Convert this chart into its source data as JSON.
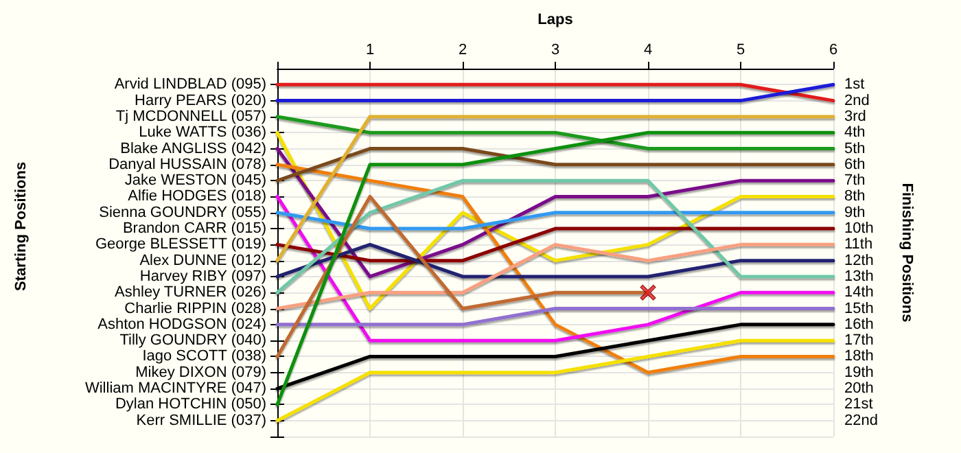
{
  "chart_data": {
    "type": "line",
    "xlabel": "Laps",
    "ylabel": "Finishing Positions",
    "annotations": [
      "Starting Positions"
    ],
    "x": [
      0,
      1,
      2,
      3,
      4,
      5,
      6
    ],
    "xlim": [
      0,
      6
    ],
    "xticks": [
      {
        "value": 0,
        "label": null
      },
      1,
      2,
      3,
      4,
      5,
      6
    ],
    "y_categories": [
      "Arvid LINDBLAD (095)",
      "Harry PEARS (020)",
      "Tj MCDONNELL (057)",
      "Luke WATTS (036)",
      "Blake ANGLISS (042)",
      "Danyal HUSSAIN (078)",
      "Jake WESTON (045)",
      "Alfie HODGES (018)",
      "Sienna GOUNDRY (055)",
      "Brandon CARR (015)",
      "George BLESSETT (019)",
      "Alex DUNNE (012)",
      "Harvey RIBY (097)",
      "Ashley TURNER (026)",
      "Charlie RIPPIN (028)",
      "Ashton HODGSON (024)",
      "Tilly GOUNDRY (040)",
      "Iago SCOTT (038)",
      "Mikey DIXON (079)",
      "William MACINTYRE (047)",
      "Dylan HOTCHIN (050)",
      "Kerr SMILLIE (037)"
    ],
    "ylim": [
      23,
      0
    ],
    "yticks": [
      {
        "value": 1,
        "label": "1st"
      },
      {
        "value": 2,
        "label": "2nd"
      },
      {
        "value": 3,
        "label": "3rd"
      },
      {
        "value": 4,
        "label": "4th"
      },
      {
        "value": 5,
        "label": "5th"
      },
      {
        "value": 6,
        "label": "6th"
      },
      {
        "value": 7,
        "label": "7th"
      },
      {
        "value": 8,
        "label": "8th"
      },
      {
        "value": 9,
        "label": "9th"
      },
      {
        "value": 10,
        "label": "10th"
      },
      {
        "value": 11,
        "label": "11th"
      },
      {
        "value": 12,
        "label": "12th"
      },
      {
        "value": 13,
        "label": "13th"
      },
      {
        "value": 14,
        "label": "14th"
      },
      {
        "value": 15,
        "label": "15th"
      },
      {
        "value": 16,
        "label": "16th"
      },
      {
        "value": 17,
        "label": "17th"
      },
      {
        "value": 18,
        "label": "18th"
      },
      {
        "value": 19,
        "label": "19th"
      },
      {
        "value": 20,
        "label": "20th"
      },
      {
        "value": 21,
        "label": "21st"
      },
      {
        "value": 22,
        "label": "22nd"
      },
      {
        "value": 23,
        "label": null
      }
    ],
    "grid": true,
    "marker": "none",
    "line_style": "solid",
    "series": [
      {
        "color": "#e01b1b",
        "values": [
          1,
          1,
          1,
          1,
          1,
          1,
          2
        ]
      },
      {
        "color": "#1a1ad8",
        "values": [
          2,
          2,
          2,
          2,
          2,
          2,
          1
        ]
      },
      {
        "color": "#1a9a1a",
        "values": [
          3,
          4,
          4,
          4,
          5,
          5,
          5
        ]
      },
      {
        "color": "#f5e000",
        "values": [
          4,
          15,
          9,
          12,
          11,
          8,
          8
        ]
      },
      {
        "color": "#7a0a8a",
        "values": [
          5,
          13,
          11,
          8,
          8,
          7,
          7
        ]
      },
      {
        "color": "#f07f10",
        "values": [
          6,
          7,
          8,
          16,
          19,
          18,
          18
        ]
      },
      {
        "color": "#7a4a1a",
        "values": [
          7,
          5,
          5,
          6,
          6,
          6,
          6
        ]
      },
      {
        "color": "#f010f0",
        "values": [
          8,
          17,
          17,
          17,
          16,
          14,
          14
        ]
      },
      {
        "color": "#3399f0",
        "values": [
          9,
          10,
          10,
          9,
          9,
          9,
          9
        ]
      },
      {
        "color": "#8b0000",
        "values": [
          11,
          12,
          12,
          10,
          10,
          10,
          10
        ]
      },
      {
        "color": "#e0b030",
        "values": [
          12,
          3,
          3,
          3,
          3,
          3,
          3
        ]
      },
      {
        "color": "#202070",
        "values": [
          13,
          11,
          13,
          13,
          13,
          12,
          12
        ]
      },
      {
        "color": "#70c8a8",
        "values": [
          14,
          9,
          7,
          7,
          7,
          13,
          13
        ]
      },
      {
        "color": "#f8a080",
        "values": [
          15,
          14,
          14,
          11,
          12,
          11,
          11
        ]
      },
      {
        "color": "#9070d0",
        "values": [
          16,
          16,
          16,
          15,
          15,
          15,
          15
        ]
      },
      {
        "color": "#c06a30",
        "values": [
          18,
          8,
          15,
          14,
          14,
          null,
          null
        ]
      },
      {
        "color": "#000000",
        "values": [
          20,
          18,
          18,
          18,
          17,
          16,
          16
        ]
      },
      {
        "color": "#109010",
        "values": [
          21,
          6,
          6,
          5,
          4,
          4,
          4
        ]
      },
      {
        "color": "#f5e000",
        "values": [
          22,
          19,
          19,
          19,
          18,
          17,
          17
        ]
      },
      {
        "type": "scatter",
        "marker": "cross",
        "color": "#e01b1b",
        "x": [
          4
        ],
        "values": [
          14
        ]
      }
    ]
  }
}
